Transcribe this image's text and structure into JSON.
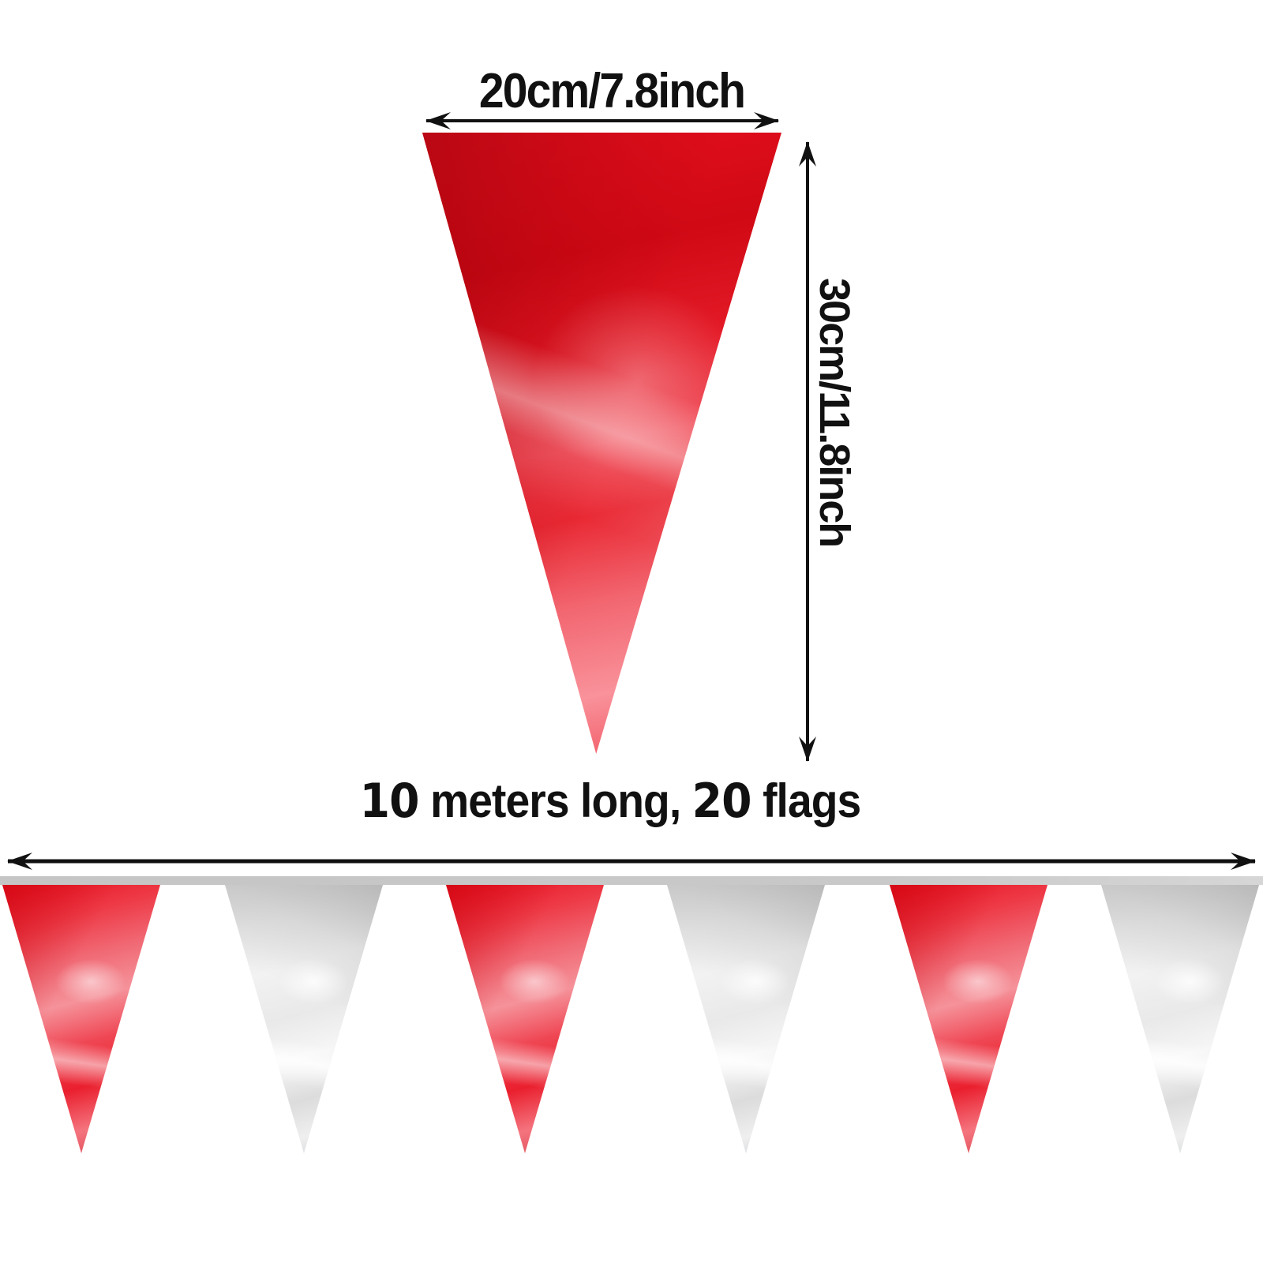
{
  "dimensions": {
    "flag_width_label": "20cm/7.8inch",
    "flag_height_label": "30cm/11.8inch"
  },
  "banner": {
    "length_value": "10",
    "length_text": " meters long, ",
    "count_value": "20",
    "count_text": " flags",
    "flags": [
      {
        "color": "red"
      },
      {
        "color": "silver"
      },
      {
        "color": "red"
      },
      {
        "color": "silver"
      },
      {
        "color": "red"
      },
      {
        "color": "silver"
      }
    ]
  },
  "colors": {
    "flag_red": "#e8101f",
    "flag_silver": "#dcdcdc",
    "ribbon_gray": "#c5c5c5",
    "annotation_ink": "#111111"
  }
}
